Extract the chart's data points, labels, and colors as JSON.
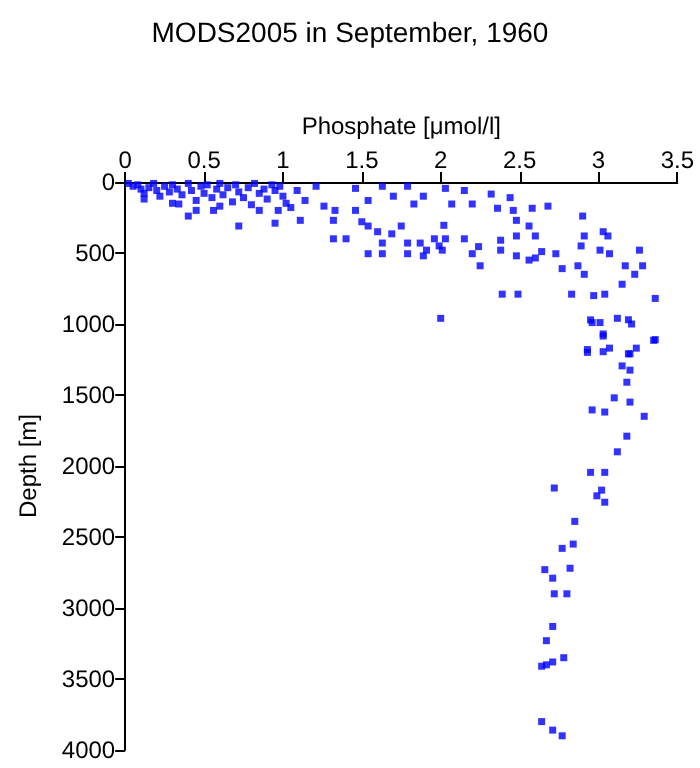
{
  "chart_data": {
    "type": "scatter",
    "title": "MODS2005 in September, 1960",
    "xlabel": "Phosphate [μmol/l]",
    "ylabel": "Depth [m]",
    "xlim": [
      0,
      3.5
    ],
    "xticks": [
      0,
      0.5,
      1,
      1.5,
      2,
      2.5,
      3,
      3.5
    ],
    "ylim": [
      4000,
      0
    ],
    "yticks": [
      0,
      500,
      1000,
      1500,
      2000,
      2500,
      3000,
      3500,
      4000
    ],
    "grid": false,
    "marker": "square",
    "color": "#0000ff",
    "x": [
      2.95,
      3.03,
      2.93,
      3.07,
      3.2,
      3.35,
      3.24,
      3.15,
      3.2,
      3.18,
      3.1,
      3.2,
      2.96,
      3.04,
      3.29,
      3.18,
      3.12,
      2.95,
      3.04,
      2.72,
      3.02,
      2.99,
      3.04,
      2.85,
      2.84,
      2.77,
      2.82,
      2.66,
      2.71,
      2.72,
      2.8,
      2.71,
      2.67,
      2.78,
      2.71,
      2.67,
      2.64,
      2.64,
      2.71,
      2.77,
      2.9,
      2.91,
      3.03,
      3.06,
      2.89,
      3.01,
      3.07,
      3.26,
      3.28,
      3.17,
      3.23,
      2.91,
      2.87,
      2.77,
      3.15,
      3.04,
      2.97,
      2.83,
      3.36,
      2.39,
      2.49,
      2,
      2.96,
      3.01,
      3.12,
      3.19,
      3.21,
      3.36,
      3.03,
      2.93,
      3.03,
      3.19,
      2.73,
      2.64,
      2.56,
      2.6,
      2.48,
      2.38,
      2.48,
      2.38,
      2.6,
      2.56,
      2.48,
      2.46,
      2.58,
      2.68,
      2.36,
      2.32,
      2.44,
      2.24,
      2.25,
      2.2,
      2.15,
      2.03,
      2.02,
      1.96,
      1.99,
      1.91,
      2.01,
      1.87,
      1.79,
      1.75,
      1.69,
      1.6,
      1.63,
      1.54,
      1.5,
      1.63,
      1.54,
      1.79,
      1.89,
      1.4,
      1.32,
      1.32,
      1.33,
      1.46,
      1.11,
      1.14,
      0.97,
      0.95,
      0.72,
      0.56,
      0.4,
      0.34,
      1.26,
      1.09,
      1.21,
      1.46,
      1.63,
      1.79,
      2.03,
      2.15,
      1.89,
      1.83,
      1.7,
      2.2,
      2.07,
      1.54,
      0.02,
      0.05,
      0.08,
      0.1,
      0.12,
      0.15,
      0.18,
      0.2,
      0.22,
      0.25,
      0.28,
      0.3,
      0.33,
      0.36,
      0.4,
      0.42,
      0.45,
      0.48,
      0.5,
      0.52,
      0.55,
      0.58,
      0.6,
      0.62,
      0.65,
      0.68,
      0.7,
      0.72,
      0.75,
      0.78,
      0.8,
      0.82,
      0.85,
      0.88,
      0.9,
      0.93,
      0.95,
      0.98,
      1,
      1.02,
      1.05,
      0.3,
      0.45,
      0.12,
      0.85,
      0.6
    ],
    "values": [
      971,
      1085,
      1200,
      1170,
      1210,
      1115,
      1170,
      1295,
      1325,
      1410,
      1520,
      1550,
      1605,
      1620,
      1650,
      1790,
      1900,
      2045,
      2045,
      2155,
      2170,
      2210,
      2255,
      2390,
      2550,
      2580,
      2720,
      2730,
      2790,
      2900,
      2900,
      3130,
      3230,
      3350,
      3380,
      3400,
      3410,
      3800,
      3860,
      3900,
      240,
      380,
      350,
      380,
      450,
      480,
      505,
      480,
      590,
      590,
      650,
      650,
      590,
      610,
      720,
      790,
      800,
      790,
      820,
      790,
      790,
      960,
      990,
      990,
      960,
      970,
      1000,
      1110,
      1070,
      1180,
      1195,
      1210,
      505,
      490,
      550,
      535,
      520,
      480,
      380,
      410,
      380,
      310,
      270,
      200,
      185,
      170,
      185,
      85,
      110,
      455,
      590,
      505,
      400,
      400,
      305,
      400,
      450,
      480,
      480,
      430,
      430,
      310,
      365,
      350,
      430,
      310,
      280,
      505,
      505,
      505,
      520,
      400,
      400,
      270,
      200,
      200,
      270,
      130,
      200,
      290,
      310,
      200,
      240,
      155,
      170,
      60,
      30,
      45,
      30,
      30,
      45,
      60,
      100,
      155,
      100,
      155,
      155,
      130,
      10,
      30,
      20,
      50,
      80,
      40,
      10,
      60,
      100,
      30,
      70,
      20,
      50,
      90,
      10,
      60,
      130,
      30,
      80,
      20,
      110,
      50,
      10,
      90,
      40,
      140,
      20,
      70,
      110,
      40,
      160,
      10,
      80,
      50,
      120,
      20,
      60,
      30,
      100,
      150,
      180,
      150,
      200,
      120,
      200,
      170
    ]
  }
}
